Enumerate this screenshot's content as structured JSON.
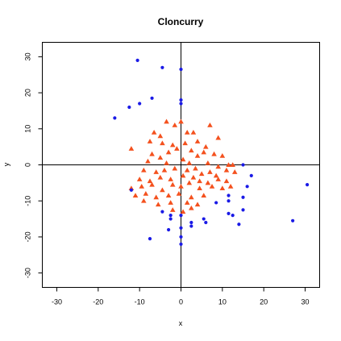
{
  "chart_data": {
    "type": "scatter",
    "title": "Cloncurry",
    "xlabel": "x",
    "ylabel": "y",
    "xlim": [
      -33.5,
      33.5
    ],
    "ylim": [
      -34,
      34
    ],
    "grid": false,
    "reference_lines": {
      "x": 0,
      "y": 0
    },
    "x_ticks": [
      -30,
      -20,
      -10,
      0,
      10,
      20,
      30
    ],
    "y_ticks": [
      -30,
      -20,
      -10,
      0,
      10,
      20,
      30
    ],
    "x_tick_labels": [
      "-30",
      "-20",
      "-10",
      "0",
      "10",
      "20",
      "30"
    ],
    "y_tick_labels": [
      "-30",
      "-20",
      "-10",
      "0",
      "10",
      "20",
      "30"
    ],
    "series": [
      {
        "marker": "triangle",
        "color": "#f4511e",
        "points": [
          [
            -6.5,
            9.0
          ],
          [
            -5.0,
            8.0
          ],
          [
            -3.5,
            12.0
          ],
          [
            -1.5,
            11.0
          ],
          [
            0.0,
            12.0
          ],
          [
            1.5,
            9.0
          ],
          [
            3.0,
            9.0
          ],
          [
            7.0,
            11.0
          ],
          [
            9.0,
            7.5
          ],
          [
            -7.5,
            6.5
          ],
          [
            -4.5,
            6.0
          ],
          [
            -2.0,
            5.5
          ],
          [
            1.0,
            6.0
          ],
          [
            4.0,
            6.5
          ],
          [
            6.0,
            5.0
          ],
          [
            -12.0,
            4.5
          ],
          [
            -7.0,
            3.0
          ],
          [
            -5.0,
            2.0
          ],
          [
            -3.0,
            3.5
          ],
          [
            -1.0,
            4.5
          ],
          [
            2.5,
            4.0
          ],
          [
            4.0,
            2.5
          ],
          [
            5.5,
            3.5
          ],
          [
            8.0,
            3.0
          ],
          [
            10.0,
            2.5
          ],
          [
            -8.0,
            1.0
          ],
          [
            -3.5,
            0.5
          ],
          [
            0.5,
            1.5
          ],
          [
            2.0,
            0.5
          ],
          [
            6.5,
            0.5
          ],
          [
            9.0,
            -0.5
          ],
          [
            11.5,
            0.0
          ],
          [
            12.5,
            0.0
          ],
          [
            -9.0,
            -1.5
          ],
          [
            -6.0,
            -2.0
          ],
          [
            -4.0,
            -1.5
          ],
          [
            -1.5,
            -1.0
          ],
          [
            1.5,
            -1.5
          ],
          [
            3.5,
            -1.0
          ],
          [
            5.0,
            -2.5
          ],
          [
            7.0,
            -2.0
          ],
          [
            8.5,
            -3.0
          ],
          [
            11.0,
            -1.5
          ],
          [
            13.0,
            -2.0
          ],
          [
            -10.0,
            -4.0
          ],
          [
            -7.5,
            -4.5
          ],
          [
            -5.0,
            -3.5
          ],
          [
            -2.5,
            -4.0
          ],
          [
            0.5,
            -3.0
          ],
          [
            3.0,
            -3.5
          ],
          [
            4.5,
            -4.5
          ],
          [
            6.5,
            -5.0
          ],
          [
            9.0,
            -4.0
          ],
          [
            11.0,
            -4.5
          ],
          [
            -12.0,
            -6.5
          ],
          [
            -9.5,
            -6.0
          ],
          [
            -7.0,
            -5.5
          ],
          [
            -4.5,
            -7.0
          ],
          [
            -2.0,
            -5.5
          ],
          [
            0.0,
            -6.0
          ],
          [
            2.0,
            -5.0
          ],
          [
            4.5,
            -6.5
          ],
          [
            7.5,
            -6.0
          ],
          [
            10.0,
            -6.5
          ],
          [
            12.0,
            -6.0
          ],
          [
            -11.0,
            -8.5
          ],
          [
            -8.5,
            -8.0
          ],
          [
            -6.0,
            -9.0
          ],
          [
            -3.0,
            -8.5
          ],
          [
            -0.5,
            -8.0
          ],
          [
            2.5,
            -9.0
          ],
          [
            5.5,
            -8.5
          ],
          [
            -9.0,
            -10.0
          ],
          [
            -5.5,
            -11.0
          ],
          [
            -2.5,
            -10.5
          ],
          [
            1.5,
            -10.5
          ],
          [
            4.0,
            -11.0
          ],
          [
            -2.0,
            -12.5
          ],
          [
            0.5,
            -13.0
          ],
          [
            2.5,
            -12.0
          ]
        ]
      },
      {
        "marker": "circle",
        "color": "#1a1ae6",
        "points": [
          [
            -10.5,
            29.0
          ],
          [
            -4.5,
            27.0
          ],
          [
            0.0,
            26.5
          ],
          [
            -12.5,
            16.0
          ],
          [
            -7.0,
            18.5
          ],
          [
            0.0,
            18.0
          ],
          [
            0.0,
            17.0
          ],
          [
            -16.0,
            13.0
          ],
          [
            -10.0,
            17.0
          ],
          [
            15.0,
            0.0
          ],
          [
            17.0,
            -3.0
          ],
          [
            16.0,
            -6.0
          ],
          [
            11.5,
            -8.5
          ],
          [
            15.0,
            -9.0
          ],
          [
            -12.0,
            -7.0
          ],
          [
            8.5,
            -10.5
          ],
          [
            11.5,
            -10.0
          ],
          [
            -4.5,
            -13.0
          ],
          [
            -2.5,
            -14.0
          ],
          [
            0.0,
            -14.0
          ],
          [
            11.5,
            -13.5
          ],
          [
            12.5,
            -14.0
          ],
          [
            15.0,
            -12.5
          ],
          [
            -2.5,
            -15.0
          ],
          [
            2.5,
            -16.0
          ],
          [
            5.5,
            -15.0
          ],
          [
            6.0,
            -16.0
          ],
          [
            0.0,
            -17.5
          ],
          [
            -3.0,
            -18.0
          ],
          [
            2.5,
            -17.0
          ],
          [
            14.0,
            -16.5
          ],
          [
            -7.5,
            -20.5
          ],
          [
            0.0,
            -20.0
          ],
          [
            0.0,
            -22.0
          ],
          [
            27.0,
            -15.5
          ],
          [
            30.5,
            -5.5
          ]
        ]
      }
    ]
  }
}
